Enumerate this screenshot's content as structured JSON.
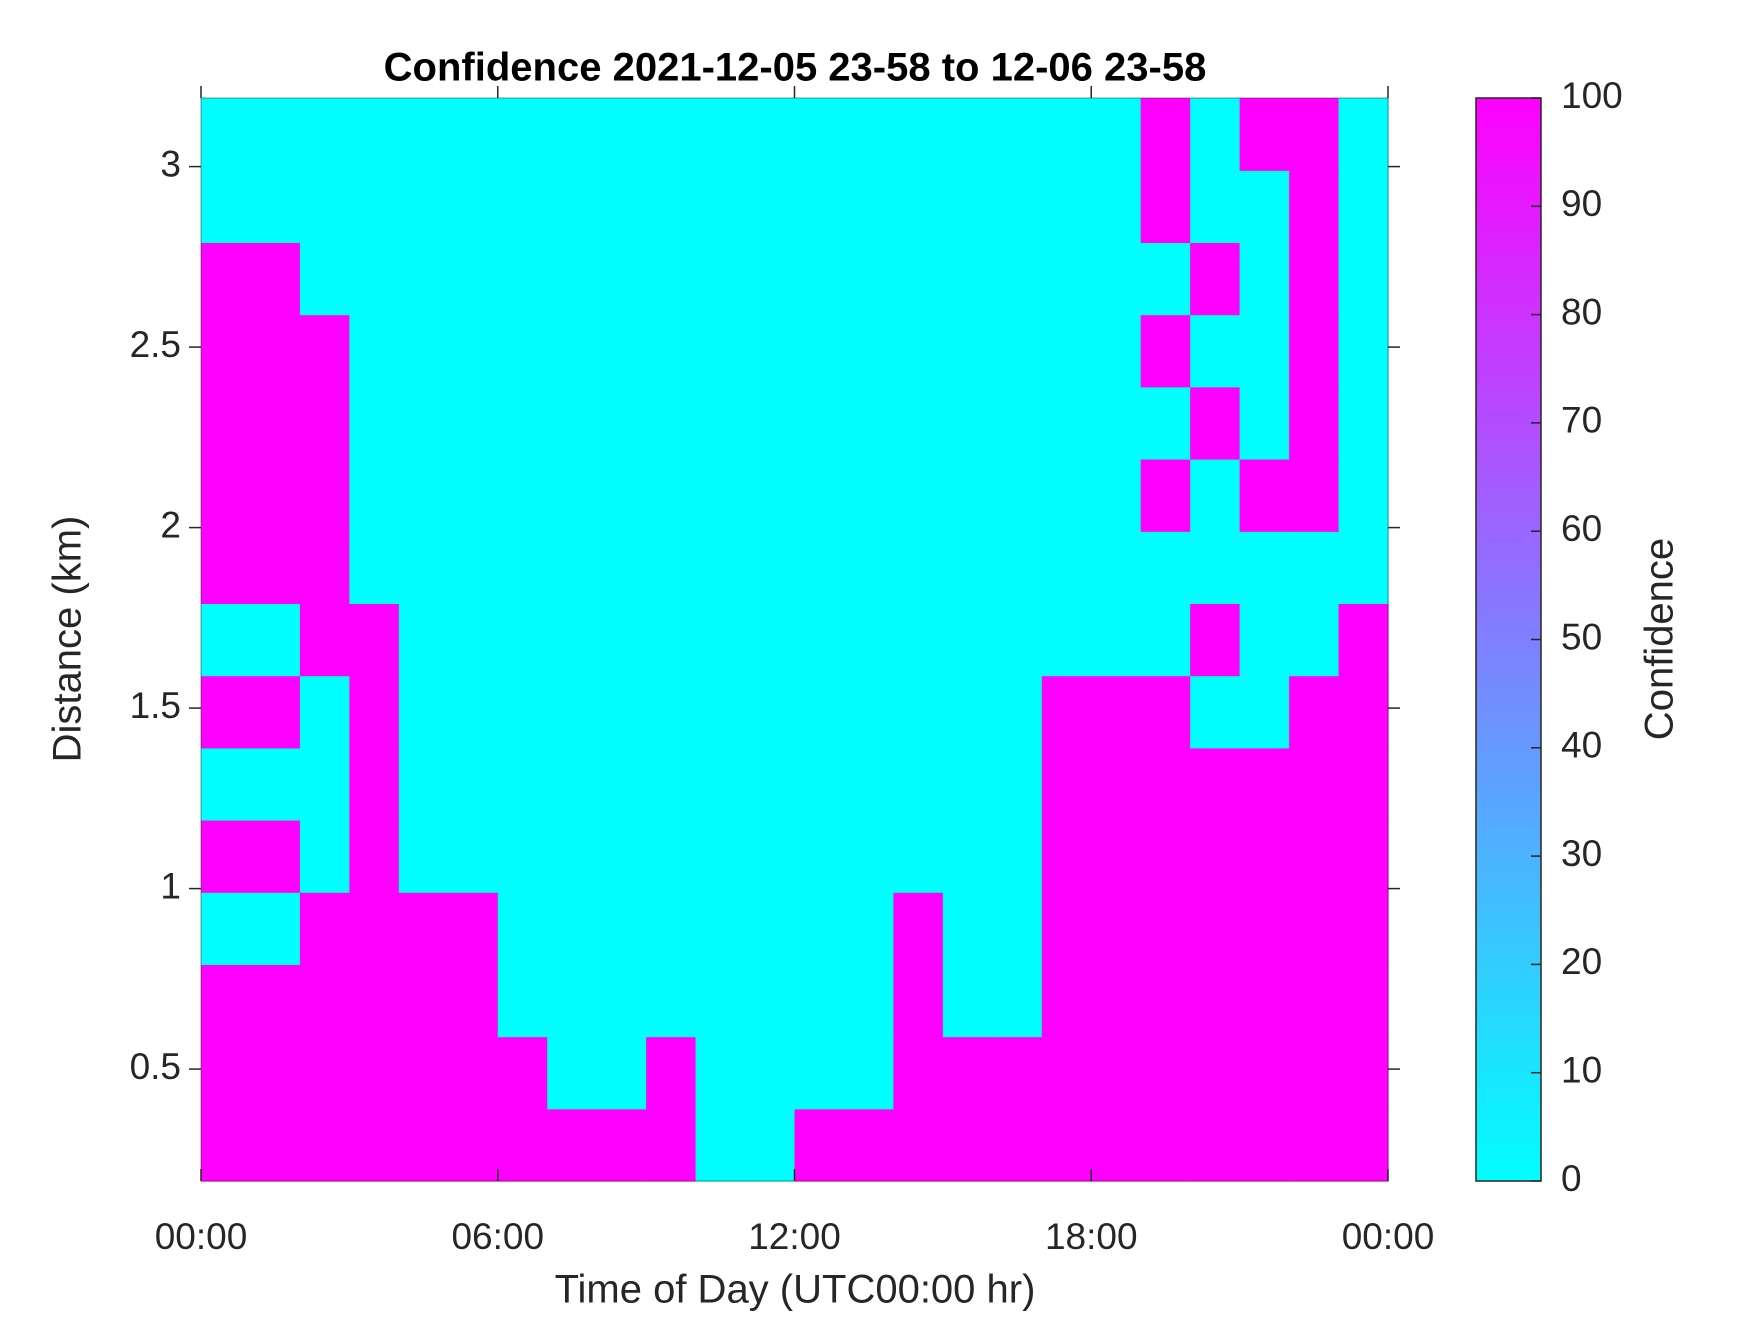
{
  "chart_data": {
    "type": "heatmap",
    "title": "Confidence 2021-12-05 23-58 to 12-06 23-58",
    "xlabel": "Time of Day (UTC00:00 hr)",
    "ylabel": "Distance (km)",
    "colorbar_label": "Confidence",
    "colormap": "cool",
    "xlim": [
      0,
      24
    ],
    "ylim": [
      0.19,
      3.19
    ],
    "clim": [
      0,
      100
    ],
    "xticks": [
      {
        "value": 0,
        "label": "00:00"
      },
      {
        "value": 6,
        "label": "06:00"
      },
      {
        "value": 12,
        "label": "12:00"
      },
      {
        "value": 18,
        "label": "18:00"
      },
      {
        "value": 24,
        "label": "00:00"
      }
    ],
    "yticks": [
      0.5,
      1,
      1.5,
      2,
      2.5,
      3
    ],
    "cticks": [
      0,
      10,
      20,
      30,
      40,
      50,
      60,
      70,
      80,
      90,
      100
    ],
    "z": [
      [
        100,
        100,
        100,
        100,
        100,
        100,
        100,
        100,
        100,
        100,
        0,
        0,
        100,
        100,
        100,
        100,
        100,
        100,
        100,
        100,
        100,
        100,
        100,
        100
      ],
      [
        100,
        100,
        100,
        100,
        100,
        100,
        100,
        0,
        0,
        100,
        0,
        0,
        0,
        0,
        100,
        100,
        100,
        100,
        100,
        100,
        100,
        100,
        100,
        100
      ],
      [
        100,
        100,
        100,
        100,
        100,
        100,
        0,
        0,
        0,
        0,
        0,
        0,
        0,
        0,
        100,
        0,
        0,
        100,
        100,
        100,
        100,
        100,
        100,
        100
      ],
      [
        0,
        0,
        100,
        100,
        100,
        100,
        0,
        0,
        0,
        0,
        0,
        0,
        0,
        0,
        100,
        0,
        0,
        100,
        100,
        100,
        100,
        100,
        100,
        100
      ],
      [
        100,
        100,
        0,
        100,
        0,
        0,
        0,
        0,
        0,
        0,
        0,
        0,
        0,
        0,
        0,
        0,
        0,
        100,
        100,
        100,
        100,
        100,
        100,
        100
      ],
      [
        0,
        0,
        0,
        100,
        0,
        0,
        0,
        0,
        0,
        0,
        0,
        0,
        0,
        0,
        0,
        0,
        0,
        100,
        100,
        100,
        100,
        100,
        100,
        100
      ],
      [
        100,
        100,
        0,
        100,
        0,
        0,
        0,
        0,
        0,
        0,
        0,
        0,
        0,
        0,
        0,
        0,
        0,
        100,
        100,
        100,
        0,
        0,
        100,
        100
      ],
      [
        0,
        0,
        100,
        100,
        0,
        0,
        0,
        0,
        0,
        0,
        0,
        0,
        0,
        0,
        0,
        0,
        0,
        0,
        0,
        0,
        100,
        0,
        0,
        100
      ],
      [
        100,
        100,
        100,
        0,
        0,
        0,
        0,
        0,
        0,
        0,
        0,
        0,
        0,
        0,
        0,
        0,
        0,
        0,
        0,
        0,
        0,
        0,
        0,
        0
      ],
      [
        100,
        100,
        100,
        0,
        0,
        0,
        0,
        0,
        0,
        0,
        0,
        0,
        0,
        0,
        0,
        0,
        0,
        0,
        0,
        100,
        0,
        100,
        100,
        0
      ],
      [
        100,
        100,
        100,
        0,
        0,
        0,
        0,
        0,
        0,
        0,
        0,
        0,
        0,
        0,
        0,
        0,
        0,
        0,
        0,
        0,
        100,
        0,
        100,
        0
      ],
      [
        100,
        100,
        100,
        0,
        0,
        0,
        0,
        0,
        0,
        0,
        0,
        0,
        0,
        0,
        0,
        0,
        0,
        0,
        0,
        100,
        0,
        0,
        100,
        0
      ],
      [
        100,
        100,
        0,
        0,
        0,
        0,
        0,
        0,
        0,
        0,
        0,
        0,
        0,
        0,
        0,
        0,
        0,
        0,
        0,
        0,
        100,
        0,
        100,
        0
      ],
      [
        0,
        0,
        0,
        0,
        0,
        0,
        0,
        0,
        0,
        0,
        0,
        0,
        0,
        0,
        0,
        0,
        0,
        0,
        0,
        100,
        0,
        0,
        100,
        0
      ],
      [
        0,
        0,
        0,
        0,
        0,
        0,
        0,
        0,
        0,
        0,
        0,
        0,
        0,
        0,
        0,
        0,
        0,
        0,
        0,
        100,
        0,
        100,
        100,
        0
      ]
    ]
  }
}
